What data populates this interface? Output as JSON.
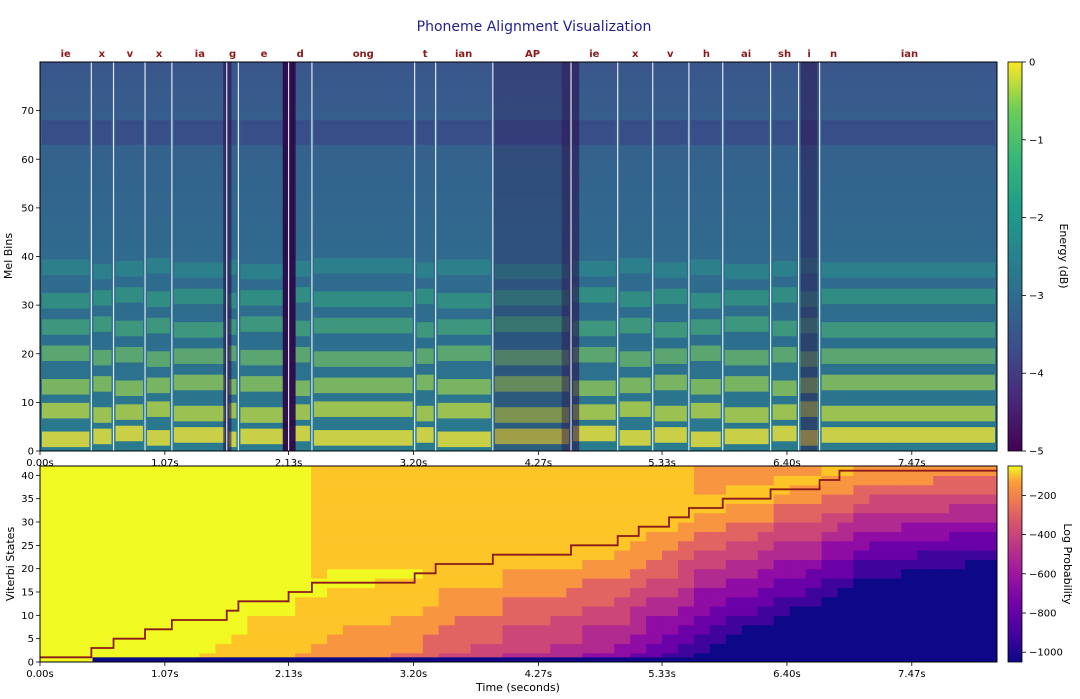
{
  "title": "Phoneme Alignment Visualization",
  "chart_data": [
    {
      "type": "heatmap",
      "name": "mel-spectrogram",
      "ylabel": "Mel Bins",
      "ylim": [
        0,
        80
      ],
      "yticks": [
        0,
        10,
        20,
        30,
        40,
        50,
        60,
        70
      ],
      "xlim": [
        0,
        8.2
      ],
      "xticks": [
        0,
        1.07,
        2.13,
        3.2,
        4.27,
        5.33,
        6.4,
        7.47
      ],
      "xtick_labels": [
        "0.00s",
        "1.07s",
        "2.13s",
        "3.20s",
        "4.27s",
        "5.33s",
        "6.40s",
        "7.47s"
      ],
      "colorbar": {
        "label": "Energy (dB)",
        "range": [
          -5,
          0
        ],
        "ticks": [
          0,
          -1,
          -2,
          -3,
          -4,
          -5
        ],
        "tick_labels": [
          "0",
          "−1",
          "−2",
          "−3",
          "−4",
          "−5"
        ],
        "colormap": "viridis"
      },
      "phoneme_boundaries": [
        0.44,
        0.63,
        0.9,
        1.13,
        1.6,
        1.7,
        2.13,
        2.33,
        3.21,
        3.39,
        3.88,
        4.55,
        4.95,
        5.25,
        5.56,
        5.85,
        6.26,
        6.5,
        6.68
      ],
      "phonemes": [
        {
          "label": "ie",
          "t": 0.22
        },
        {
          "label": "x",
          "t": 0.53
        },
        {
          "label": "v",
          "t": 0.77
        },
        {
          "label": "x",
          "t": 1.02
        },
        {
          "label": "ia",
          "t": 1.37
        },
        {
          "label": "g",
          "t": 1.65
        },
        {
          "label": "e",
          "t": 1.92
        },
        {
          "label": "d",
          "t": 2.23
        },
        {
          "label": "ong",
          "t": 2.77
        },
        {
          "label": "t",
          "t": 3.3
        },
        {
          "label": "ian",
          "t": 3.63
        },
        {
          "label": "AP",
          "t": 4.22
        },
        {
          "label": "ie",
          "t": 4.75
        },
        {
          "label": "x",
          "t": 5.1
        },
        {
          "label": "v",
          "t": 5.4
        },
        {
          "label": "h",
          "t": 5.71
        },
        {
          "label": "ai",
          "t": 6.05
        },
        {
          "label": "sh",
          "t": 6.38
        },
        {
          "label": "i",
          "t": 6.59
        },
        {
          "label": "n",
          "t": 6.8
        },
        {
          "label": "ian",
          "t": 7.45
        }
      ]
    },
    {
      "type": "heatmap",
      "name": "viterbi-states",
      "ylabel": "Viterbi States",
      "xlabel": "Time (seconds)",
      "ylim": [
        0,
        42
      ],
      "yticks": [
        0,
        5,
        10,
        15,
        20,
        25,
        30,
        35,
        40
      ],
      "xlim": [
        0,
        8.2
      ],
      "xticks": [
        0,
        1.07,
        2.13,
        3.2,
        4.27,
        5.33,
        6.4,
        7.47
      ],
      "xtick_labels": [
        "0.00s",
        "1.07s",
        "2.13s",
        "3.20s",
        "4.27s",
        "5.33s",
        "6.40s",
        "7.47s"
      ],
      "colorbar": {
        "label": "Log Probability",
        "range": [
          -1050,
          -50
        ],
        "ticks": [
          -200,
          -400,
          -600,
          -800,
          -1000
        ],
        "tick_labels": [
          "−200",
          "−400",
          "−600",
          "−800",
          "−1000"
        ],
        "colormap": "plasma"
      },
      "viterbi_path": [
        {
          "t": 0.0,
          "state": 1
        },
        {
          "t": 0.44,
          "state": 3
        },
        {
          "t": 0.63,
          "state": 5
        },
        {
          "t": 0.9,
          "state": 7
        },
        {
          "t": 1.13,
          "state": 9
        },
        {
          "t": 1.6,
          "state": 11
        },
        {
          "t": 1.7,
          "state": 13
        },
        {
          "t": 2.13,
          "state": 15
        },
        {
          "t": 2.33,
          "state": 17
        },
        {
          "t": 3.21,
          "state": 19
        },
        {
          "t": 3.39,
          "state": 21
        },
        {
          "t": 3.88,
          "state": 23
        },
        {
          "t": 4.55,
          "state": 25
        },
        {
          "t": 4.95,
          "state": 27
        },
        {
          "t": 5.13,
          "state": 29
        },
        {
          "t": 5.39,
          "state": 31
        },
        {
          "t": 5.56,
          "state": 33
        },
        {
          "t": 5.85,
          "state": 35
        },
        {
          "t": 6.26,
          "state": 37
        },
        {
          "t": 6.68,
          "state": 39
        },
        {
          "t": 6.85,
          "state": 41
        },
        {
          "t": 8.2,
          "state": 41
        }
      ]
    }
  ]
}
